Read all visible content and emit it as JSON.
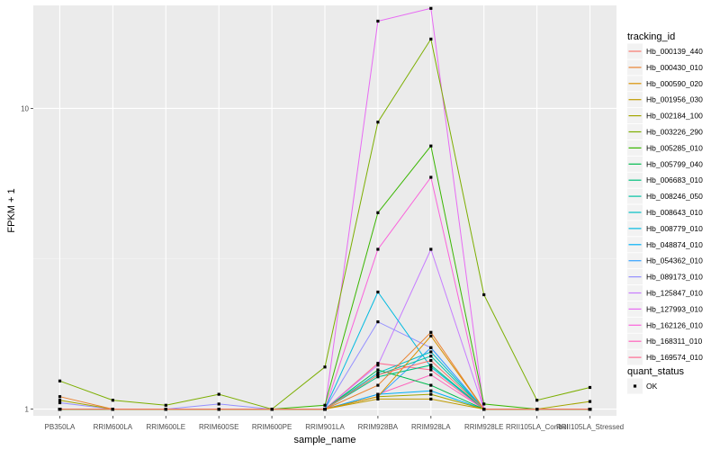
{
  "chart_data": {
    "type": "line",
    "xlabel": "sample_name",
    "ylabel": "FPKM + 1",
    "y_scale": "log10",
    "ylim": [
      0.95,
      22
    ],
    "y_ticks": [
      1,
      10
    ],
    "grid": true,
    "categories": [
      "PB350LA",
      "RRIM600LA",
      "RRIM600LE",
      "RRIM600SE",
      "RRIM600PE",
      "RRIM901LA",
      "RRIM928BA",
      "RRIM928LA",
      "RRIM928LE",
      "RRII105LA_Control",
      "RRII105LA_Stressed"
    ],
    "legend": {
      "title": "tracking_id",
      "placement": "right",
      "items": [
        "Hb_000139_440",
        "Hb_000430_010",
        "Hb_000590_020",
        "Hb_001956_030",
        "Hb_002184_100",
        "Hb_003226_290",
        "Hb_005285_010",
        "Hb_005799_040",
        "Hb_006683_010",
        "Hb_008246_050",
        "Hb_008643_010",
        "Hb_008779_010",
        "Hb_048874_010",
        "Hb_054362_010",
        "Hb_089173_010",
        "Hb_125847_010",
        "Hb_127993_010",
        "Hb_162126_010",
        "Hb_168311_010",
        "Hb_169574_010"
      ]
    },
    "shape_legend": {
      "title": "quant_status",
      "items": [
        "OK"
      ]
    },
    "series": [
      {
        "name": "Hb_000139_440",
        "color": "#F8766D",
        "values": [
          1.0,
          1.0,
          1.0,
          1.0,
          1.0,
          1.0,
          1.3,
          1.45,
          1.0,
          1.0,
          1.0
        ]
      },
      {
        "name": "Hb_000430_010",
        "color": "#EA8331",
        "values": [
          1.1,
          1.0,
          1.0,
          1.0,
          1.0,
          1.0,
          1.2,
          1.8,
          1.0,
          1.0,
          1.0
        ]
      },
      {
        "name": "Hb_000590_020",
        "color": "#D89000",
        "values": [
          1.0,
          1.0,
          1.0,
          1.0,
          1.0,
          1.0,
          1.1,
          1.75,
          1.0,
          1.0,
          1.0
        ]
      },
      {
        "name": "Hb_001956_030",
        "color": "#C09B00",
        "values": [
          1.0,
          1.0,
          1.0,
          1.0,
          1.0,
          1.0,
          1.08,
          1.08,
          1.0,
          1.0,
          1.0
        ]
      },
      {
        "name": "Hb_002184_100",
        "color": "#A3A500",
        "values": [
          1.07,
          1.0,
          1.0,
          1.0,
          1.0,
          1.0,
          1.1,
          1.12,
          1.0,
          1.0,
          1.06
        ]
      },
      {
        "name": "Hb_003226_290",
        "color": "#7CAE00",
        "values": [
          1.24,
          1.07,
          1.03,
          1.12,
          1.0,
          1.38,
          9.0,
          17.0,
          2.4,
          1.07,
          1.18
        ]
      },
      {
        "name": "Hb_005285_010",
        "color": "#39B600",
        "values": [
          1.0,
          1.0,
          1.0,
          1.0,
          1.0,
          1.03,
          4.5,
          7.5,
          1.04,
          1.0,
          1.0
        ]
      },
      {
        "name": "Hb_005799_040",
        "color": "#00BB4E",
        "values": [
          1.0,
          1.0,
          1.0,
          1.0,
          1.0,
          1.0,
          1.35,
          1.2,
          1.0,
          1.0,
          1.0
        ]
      },
      {
        "name": "Hb_006683_010",
        "color": "#00BF7D",
        "values": [
          1.0,
          1.0,
          1.0,
          1.0,
          1.0,
          1.0,
          1.28,
          1.4,
          1.0,
          1.0,
          1.0
        ]
      },
      {
        "name": "Hb_008246_050",
        "color": "#00C1A3",
        "values": [
          1.0,
          1.0,
          1.0,
          1.0,
          1.0,
          1.0,
          1.3,
          1.5,
          1.0,
          1.0,
          1.0
        ]
      },
      {
        "name": "Hb_008643_010",
        "color": "#00BFC4",
        "values": [
          1.0,
          1.0,
          1.0,
          1.0,
          1.0,
          1.0,
          1.32,
          1.55,
          1.0,
          1.0,
          1.0
        ]
      },
      {
        "name": "Hb_008779_010",
        "color": "#00BAE0",
        "values": [
          1.0,
          1.0,
          1.0,
          1.0,
          1.0,
          1.0,
          2.45,
          1.38,
          1.0,
          1.0,
          1.0
        ]
      },
      {
        "name": "Hb_048874_010",
        "color": "#00B0F6",
        "values": [
          1.0,
          1.0,
          1.0,
          1.0,
          1.0,
          1.0,
          1.12,
          1.15,
          1.0,
          1.0,
          1.0
        ]
      },
      {
        "name": "Hb_054362_010",
        "color": "#35A2FF",
        "values": [
          1.0,
          1.0,
          1.0,
          1.0,
          1.0,
          1.0,
          1.1,
          1.6,
          1.0,
          1.0,
          1.0
        ]
      },
      {
        "name": "Hb_089173_010",
        "color": "#9590FF",
        "values": [
          1.05,
          1.0,
          1.0,
          1.04,
          1.0,
          1.0,
          1.95,
          1.6,
          1.0,
          1.0,
          1.0
        ]
      },
      {
        "name": "Hb_125847_010",
        "color": "#C77CFF",
        "values": [
          1.0,
          1.0,
          1.0,
          1.0,
          1.0,
          1.0,
          1.4,
          3.4,
          1.0,
          1.0,
          1.0
        ]
      },
      {
        "name": "Hb_127993_010",
        "color": "#E76BF3",
        "values": [
          1.0,
          1.0,
          1.0,
          1.0,
          1.0,
          1.0,
          19.5,
          21.5,
          1.0,
          1.0,
          1.0
        ]
      },
      {
        "name": "Hb_162126_010",
        "color": "#FA62DB",
        "values": [
          1.0,
          1.0,
          1.0,
          1.0,
          1.0,
          1.0,
          3.4,
          5.9,
          1.0,
          1.0,
          1.0
        ]
      },
      {
        "name": "Hb_168311_010",
        "color": "#FF62BC",
        "values": [
          1.0,
          1.0,
          1.0,
          1.0,
          1.0,
          1.0,
          1.12,
          1.3,
          1.0,
          1.0,
          1.0
        ]
      },
      {
        "name": "Hb_169574_010",
        "color": "#FF6C91",
        "values": [
          1.0,
          1.0,
          1.0,
          1.0,
          1.0,
          1.0,
          1.42,
          1.35,
          1.0,
          1.0,
          1.0
        ]
      }
    ]
  }
}
